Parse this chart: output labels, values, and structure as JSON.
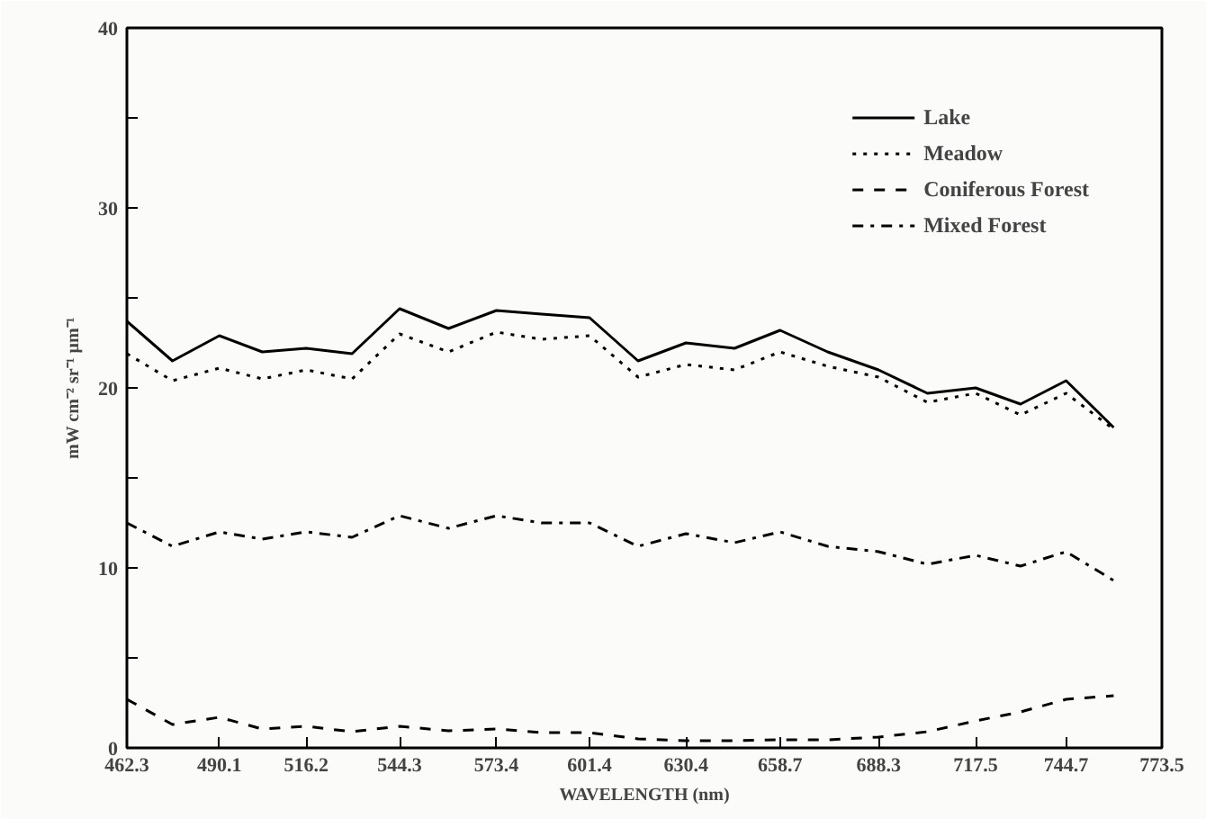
{
  "chart_data": {
    "type": "line",
    "xlabel": "WAVELENGTH (nm)",
    "ylabel": "mW cm⁻² sr⁻¹ μm⁻¹",
    "x": [
      462.3,
      476,
      490.1,
      503,
      516.2,
      530,
      544.3,
      559,
      573.4,
      587,
      601.4,
      616,
      630.4,
      645,
      658.7,
      673,
      688.3,
      703,
      717.5,
      731,
      744.7,
      759
    ],
    "series": [
      {
        "name": "Lake",
        "color": "#000000",
        "line_style": "solid",
        "values": [
          23.7,
          21.5,
          22.9,
          22.0,
          22.2,
          21.9,
          24.4,
          23.3,
          24.3,
          24.1,
          23.9,
          21.5,
          22.5,
          22.2,
          23.2,
          22.0,
          21.0,
          19.7,
          20.0,
          19.1,
          20.4,
          17.8
        ]
      },
      {
        "name": "Meadow",
        "color": "#000000",
        "line_style": "dotted",
        "values": [
          21.9,
          20.4,
          21.1,
          20.5,
          21.0,
          20.5,
          23.0,
          22.0,
          23.1,
          22.7,
          22.9,
          20.6,
          21.3,
          21.0,
          22.0,
          21.2,
          20.6,
          19.2,
          19.7,
          18.5,
          19.7,
          17.7
        ]
      },
      {
        "name": "Coniferous Forest",
        "color": "#000000",
        "line_style": "dashed",
        "values": [
          2.7,
          1.3,
          1.7,
          1.05,
          1.2,
          0.9,
          1.2,
          0.95,
          1.05,
          0.85,
          0.85,
          0.5,
          0.4,
          0.4,
          0.45,
          0.45,
          0.6,
          0.9,
          1.5,
          2.0,
          2.7,
          2.9
        ]
      },
      {
        "name": "Mixed Forest",
        "color": "#000000",
        "line_style": "dashdot",
        "values": [
          12.5,
          11.2,
          12.0,
          11.6,
          12.0,
          11.7,
          12.9,
          12.2,
          12.9,
          12.5,
          12.5,
          11.2,
          11.9,
          11.4,
          12.0,
          11.2,
          10.9,
          10.2,
          10.7,
          10.1,
          10.9,
          9.3
        ]
      }
    ],
    "xlim": [
      462.3,
      773.5
    ],
    "ylim": [
      0,
      40
    ],
    "xticks": [
      462.3,
      490.1,
      516.2,
      544.3,
      573.4,
      601.4,
      630.4,
      658.7,
      688.3,
      717.5,
      744.7,
      773.5
    ],
    "yticks": [
      0,
      {
        "value": 5,
        "label": null
      },
      10,
      {
        "value": 15,
        "label": null
      },
      20,
      {
        "value": 25,
        "label": null
      },
      30,
      {
        "value": 35,
        "label": null
      },
      40
    ],
    "grid": false,
    "legend": "top right"
  }
}
